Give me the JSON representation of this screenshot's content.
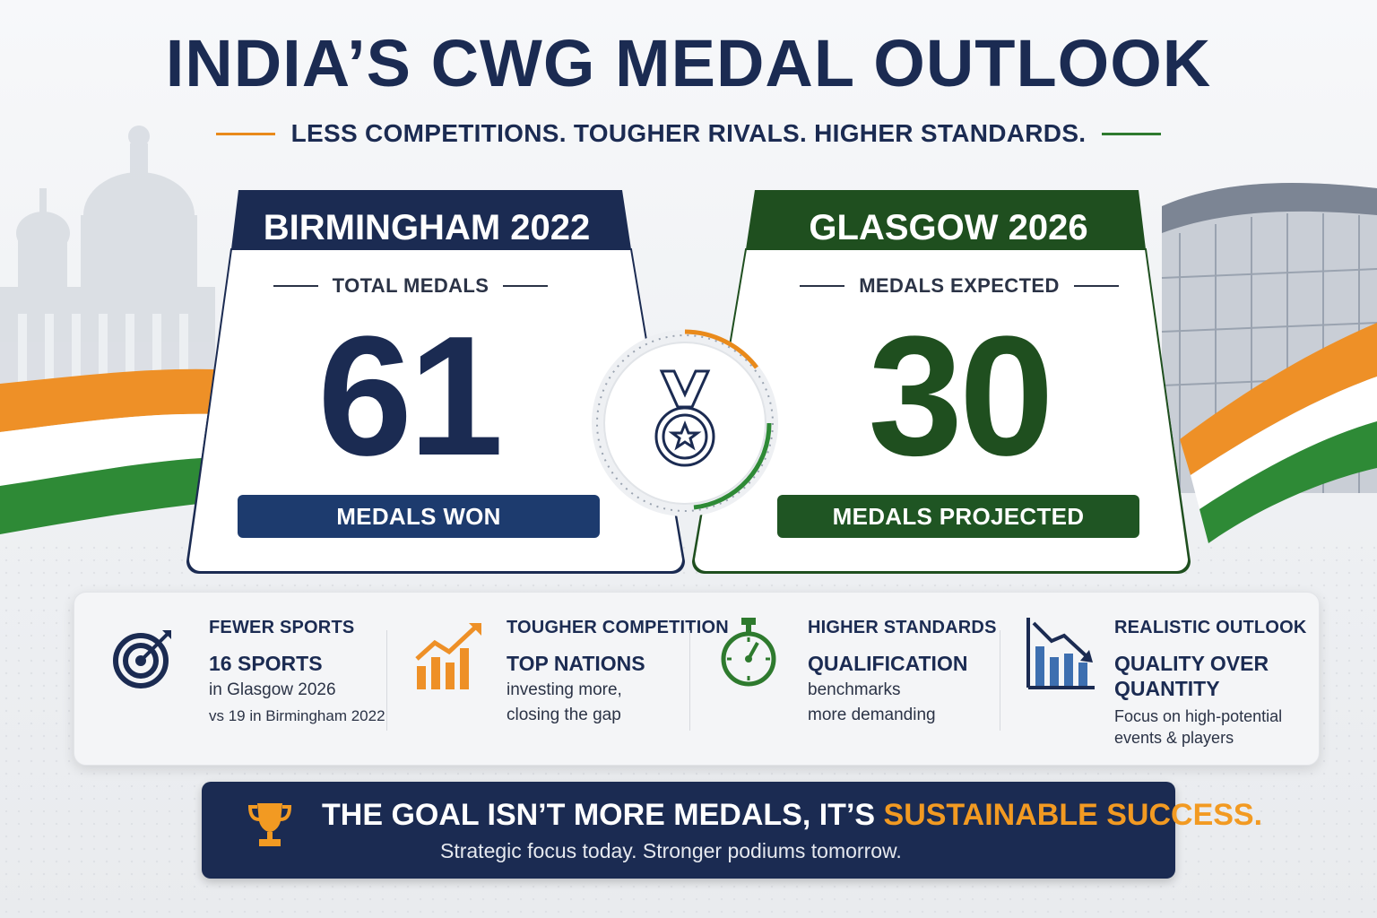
{
  "header": {
    "title": "INDIA’S CWG MEDAL OUTLOOK",
    "subtitle": "LESS COMPETITIONS. TOUGHER RIVALS. HIGHER STANDARDS."
  },
  "cards": {
    "left": {
      "heading": "BIRMINGHAM 2022",
      "kicker": "TOTAL MEDALS",
      "number": "61",
      "pill": "MEDALS WON",
      "color": "#1b2b52"
    },
    "right": {
      "heading": "GLASGOW 2026",
      "kicker": "MEDALS EXPECTED",
      "number": "30",
      "pill": "MEDALS PROJECTED",
      "color": "#1f4f1f"
    },
    "center_icon": "medal-icon"
  },
  "features": [
    {
      "icon": "target-icon",
      "title": "FEWER SPORTS",
      "headline": "16 SPORTS",
      "line1": "in Glasgow 2026",
      "line2": "vs 19 in Birmingham 2022"
    },
    {
      "icon": "rising-chart-icon",
      "title": "TOUGHER COMPETITION",
      "headline": "TOP NATIONS",
      "line1": "investing more,",
      "line2": "closing the gap"
    },
    {
      "icon": "stopwatch-icon",
      "title": "HIGHER STANDARDS",
      "headline": "QUALIFICATION",
      "line1": "benchmarks",
      "line2": "more demanding"
    },
    {
      "icon": "falling-chart-icon",
      "title": "REALISTIC OUTLOOK",
      "headline": "QUALITY OVER",
      "headline2": "QUANTITY",
      "line1": "Focus on high-potential",
      "line2": "events & players"
    }
  ],
  "footer": {
    "icon": "trophy-icon",
    "lead": "THE GOAL ISN’T MORE MEDALS, IT’S ",
    "highlight": "SUSTAINABLE SUCCESS.",
    "tagline": "Strategic focus today. Stronger podiums tomorrow."
  },
  "colors": {
    "navy": "#1b2b52",
    "green": "#1f5523",
    "saffron": "#e98a1b",
    "highlight": "#f29a22"
  }
}
